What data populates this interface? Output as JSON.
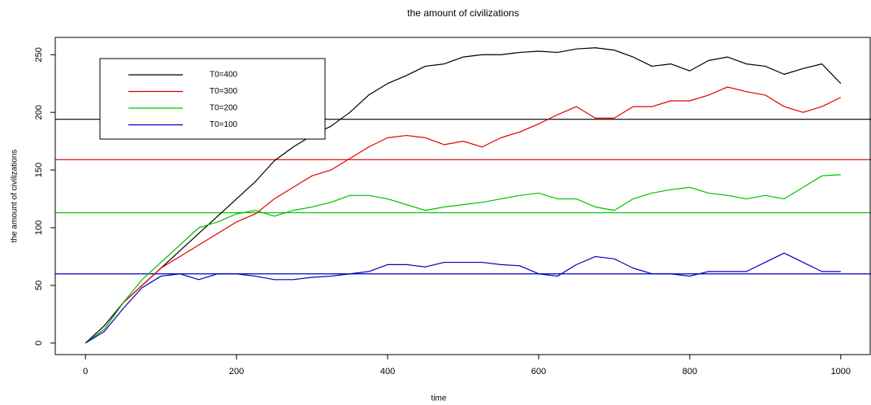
{
  "chart_data": {
    "type": "line",
    "title": "the amount of civilizations",
    "x_label": "time",
    "y_label": "the amount of civilizations",
    "x": [
      0,
      25,
      50,
      75,
      100,
      125,
      150,
      175,
      200,
      225,
      250,
      275,
      300,
      325,
      350,
      375,
      400,
      425,
      450,
      475,
      500,
      525,
      550,
      575,
      600,
      625,
      650,
      675,
      700,
      725,
      750,
      775,
      800,
      825,
      850,
      875,
      900,
      925,
      950,
      975,
      1000
    ],
    "series": [
      {
        "name": "T0=400",
        "color": "#000000",
        "values": [
          0,
          15,
          35,
          50,
          65,
          80,
          95,
          110,
          125,
          140,
          158,
          170,
          180,
          188,
          200,
          215,
          225,
          232,
          240,
          242,
          248,
          250,
          250,
          252,
          253,
          252,
          255,
          256,
          254,
          248,
          240,
          242,
          236,
          245,
          248,
          242,
          240,
          233,
          238,
          242,
          225
        ]
      },
      {
        "name": "T0=300",
        "color": "#e00000",
        "values": [
          0,
          12,
          35,
          50,
          65,
          75,
          85,
          95,
          105,
          112,
          125,
          135,
          145,
          150,
          160,
          170,
          178,
          180,
          178,
          172,
          175,
          170,
          178,
          183,
          190,
          198,
          205,
          195,
          195,
          205,
          205,
          210,
          210,
          215,
          222,
          218,
          215,
          205,
          200,
          205,
          213
        ]
      },
      {
        "name": "T0=200",
        "color": "#00c000",
        "values": [
          0,
          12,
          35,
          55,
          70,
          85,
          100,
          105,
          112,
          115,
          110,
          115,
          118,
          122,
          128,
          128,
          125,
          120,
          115,
          118,
          120,
          122,
          125,
          128,
          130,
          125,
          125,
          118,
          115,
          125,
          130,
          133,
          135,
          130,
          128,
          125,
          128,
          125,
          135,
          145,
          146
        ]
      },
      {
        "name": "T0=100",
        "color": "#0000c0",
        "values": [
          0,
          10,
          30,
          48,
          58,
          60,
          55,
          60,
          60,
          58,
          55,
          55,
          57,
          58,
          60,
          62,
          68,
          68,
          66,
          70,
          70,
          70,
          68,
          67,
          60,
          58,
          68,
          75,
          73,
          65,
          60,
          60,
          58,
          62,
          62,
          62,
          70,
          78,
          70,
          62,
          62
        ]
      }
    ],
    "reference_lines": [
      {
        "value": 194,
        "color": "#000000"
      },
      {
        "value": 159,
        "color": "#e00000"
      },
      {
        "value": 113,
        "color": "#00c000"
      },
      {
        "value": 60,
        "color": "#0000c0"
      }
    ],
    "xlim": [
      -40,
      1040
    ],
    "ylim": [
      -10,
      265
    ],
    "xticks": [
      0,
      200,
      400,
      600,
      800,
      1000
    ],
    "yticks": [
      0,
      50,
      100,
      150,
      200,
      250
    ],
    "legend": "top-left"
  }
}
